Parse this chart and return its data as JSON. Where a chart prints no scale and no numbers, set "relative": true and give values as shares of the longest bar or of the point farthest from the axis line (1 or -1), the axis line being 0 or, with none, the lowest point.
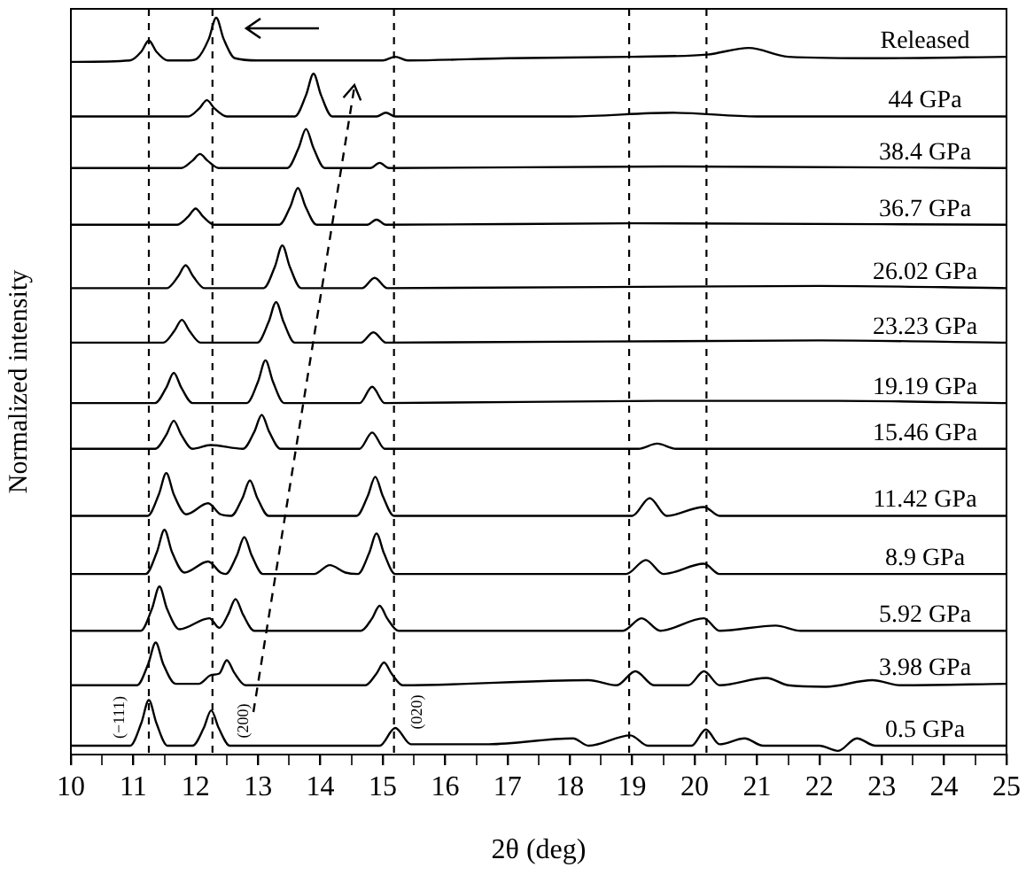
{
  "chart_data": {
    "type": "line",
    "relative": true,
    "xlabel": "2θ (deg)",
    "ylabel": "Normalized intensity",
    "xlim": [
      10,
      25
    ],
    "xticks": [
      10,
      {
        "value": 10.5,
        "label": null
      },
      11,
      {
        "value": 11.5,
        "label": null
      },
      12,
      {
        "value": 12.5,
        "label": null
      },
      13,
      {
        "value": 13.5,
        "label": null
      },
      14,
      {
        "value": 14.5,
        "label": null
      },
      15,
      {
        "value": 15.5,
        "label": null
      },
      16,
      {
        "value": 16.5,
        "label": null
      },
      17,
      {
        "value": 17.5,
        "label": null
      },
      18,
      {
        "value": 18.5,
        "label": null
      },
      19,
      {
        "value": 19.5,
        "label": null
      },
      20,
      {
        "value": 20.5,
        "label": null
      },
      21,
      {
        "value": 21.5,
        "label": null
      },
      22,
      {
        "value": 22.5,
        "label": null
      },
      23,
      {
        "value": 23.5,
        "label": null
      },
      24,
      {
        "value": 24.5,
        "label": null
      },
      25
    ],
    "grid": false,
    "legend": false,
    "marker": "none",
    "line_style": "solid",
    "ref_lines": [
      {
        "axis": "x",
        "value": 11.25,
        "line_style": "dashed"
      },
      {
        "axis": "x",
        "value": 12.27,
        "line_style": "dashed"
      },
      {
        "axis": "x",
        "value": 15.18,
        "line_style": "dashed"
      },
      {
        "axis": "x",
        "value": 18.95,
        "line_style": "dashed"
      },
      {
        "axis": "x",
        "value": 20.19,
        "line_style": "dashed"
      }
    ],
    "annotations": [
      "(−111)",
      "(200)",
      "(020)"
    ],
    "series": [
      {
        "name": "Released",
        "color": "#000000",
        "x": [
          10,
          10.95,
          11.13,
          11.25,
          11.37,
          11.55,
          11.9,
          12.03,
          12.21,
          12.33,
          12.45,
          12.63,
          13,
          15,
          15.2,
          15.4,
          17,
          19,
          20.2,
          20.87,
          21.5,
          23,
          25
        ],
        "values": [
          0.94,
          0.942,
          0.954,
          0.969,
          0.954,
          0.942,
          0.942,
          0.945,
          0.971,
          1,
          0.971,
          0.945,
          0.942,
          0.942,
          0.947,
          0.942,
          0.945,
          0.947,
          0.95,
          0.959,
          0.947,
          0.945,
          0.947
        ]
      },
      {
        "name": "44 GPa",
        "color": "#000000",
        "x": [
          10,
          11.88,
          12.06,
          12.18,
          12.3,
          12.5,
          13.59,
          13.77,
          13.89,
          14.01,
          14.19,
          14.9,
          15.05,
          15.2,
          18,
          19.65,
          21,
          25
        ],
        "values": [
          0.866,
          0.866,
          0.877,
          0.888,
          0.877,
          0.866,
          0.866,
          0.895,
          0.924,
          0.895,
          0.866,
          0.866,
          0.871,
          0.866,
          0.866,
          0.871,
          0.866,
          0.866
        ]
      },
      {
        "name": "38.4 GPa",
        "color": "#000000",
        "x": [
          10,
          11.77,
          11.95,
          12.07,
          12.19,
          12.37,
          13.47,
          13.65,
          13.77,
          13.89,
          14.07,
          14.8,
          14.95,
          15.1,
          19.5,
          25
        ],
        "values": [
          0.796,
          0.796,
          0.806,
          0.815,
          0.806,
          0.796,
          0.796,
          0.823,
          0.849,
          0.823,
          0.796,
          0.796,
          0.803,
          0.796,
          0.798,
          0.796
        ]
      },
      {
        "name": "36.7 GPa",
        "color": "#000000",
        "x": [
          10,
          11.7,
          11.88,
          12,
          12.12,
          12.3,
          13.34,
          13.52,
          13.64,
          13.76,
          13.94,
          14.75,
          14.9,
          15.05,
          19,
          25
        ],
        "values": [
          0.719,
          0.719,
          0.73,
          0.741,
          0.73,
          0.719,
          0.719,
          0.744,
          0.769,
          0.744,
          0.719,
          0.719,
          0.726,
          0.719,
          0.721,
          0.719
        ]
      },
      {
        "name": "26.02 GPa",
        "color": "#000000",
        "x": [
          10,
          11.54,
          11.72,
          11.84,
          11.96,
          12.14,
          13.09,
          13.27,
          13.39,
          13.51,
          13.69,
          14.67,
          14.87,
          15.07,
          22,
          25
        ],
        "values": [
          0.633,
          0.633,
          0.649,
          0.664,
          0.649,
          0.633,
          0.633,
          0.662,
          0.691,
          0.662,
          0.633,
          0.633,
          0.647,
          0.633,
          0.636,
          0.633
        ]
      },
      {
        "name": "23.23 GPa",
        "color": "#000000",
        "x": [
          10,
          11.48,
          11.66,
          11.78,
          11.9,
          12.08,
          12.99,
          13.17,
          13.29,
          13.41,
          13.59,
          14.65,
          14.85,
          15.05,
          22,
          25
        ],
        "values": [
          0.559,
          0.559,
          0.575,
          0.59,
          0.575,
          0.559,
          0.559,
          0.587,
          0.614,
          0.587,
          0.559,
          0.559,
          0.573,
          0.559,
          0.562,
          0.559
        ]
      },
      {
        "name": "19.19 GPa",
        "color": "#000000",
        "x": [
          10,
          11.35,
          11.53,
          11.65,
          11.77,
          11.95,
          12.82,
          13,
          13.12,
          13.24,
          13.42,
          14.63,
          14.83,
          15.03,
          19.4,
          22.3,
          25
        ],
        "values": [
          0.477,
          0.477,
          0.498,
          0.518,
          0.498,
          0.477,
          0.477,
          0.506,
          0.535,
          0.506,
          0.477,
          0.477,
          0.499,
          0.477,
          0.48,
          0.48,
          0.477
        ]
      },
      {
        "name": "15.46 GPa",
        "color": "#000000",
        "x": [
          10,
          11.35,
          11.53,
          11.65,
          11.77,
          11.95,
          12.24,
          12.76,
          12.94,
          13.06,
          13.18,
          13.36,
          14.63,
          14.83,
          15.03,
          19.1,
          19.4,
          19.7,
          25
        ],
        "values": [
          0.415,
          0.415,
          0.434,
          0.453,
          0.434,
          0.415,
          0.42,
          0.415,
          0.438,
          0.461,
          0.438,
          0.415,
          0.415,
          0.437,
          0.415,
          0.415,
          0.422,
          0.415,
          0.415
        ]
      },
      {
        "name": "11.42 GPa",
        "color": "#000000",
        "x": [
          10,
          11.23,
          11.41,
          11.53,
          11.65,
          11.85,
          12.2,
          12.4,
          12.57,
          12.75,
          12.87,
          12.99,
          13.17,
          14.58,
          14.76,
          14.88,
          15,
          15.18,
          19,
          19.28,
          19.55,
          20.15,
          20.4,
          25
        ],
        "values": [
          0.324,
          0.324,
          0.353,
          0.382,
          0.353,
          0.326,
          0.341,
          0.326,
          0.324,
          0.348,
          0.372,
          0.348,
          0.324,
          0.324,
          0.351,
          0.377,
          0.351,
          0.324,
          0.324,
          0.348,
          0.324,
          0.336,
          0.324,
          0.324
        ]
      },
      {
        "name": "8.9 GPa",
        "color": "#000000",
        "x": [
          10,
          11.2,
          11.38,
          11.5,
          11.62,
          11.82,
          12.2,
          12.4,
          12.48,
          12.66,
          12.78,
          12.9,
          13.08,
          13.9,
          14.15,
          14.4,
          14.6,
          14.78,
          14.9,
          15.02,
          15.2,
          18.9,
          19.22,
          19.5,
          20.15,
          20.4,
          25
        ],
        "values": [
          0.245,
          0.245,
          0.275,
          0.305,
          0.275,
          0.247,
          0.262,
          0.247,
          0.245,
          0.27,
          0.295,
          0.27,
          0.245,
          0.245,
          0.257,
          0.247,
          0.245,
          0.273,
          0.3,
          0.273,
          0.245,
          0.245,
          0.264,
          0.245,
          0.259,
          0.245,
          0.245
        ]
      },
      {
        "name": "5.92 GPa",
        "color": "#000000",
        "x": [
          10,
          11.12,
          11.3,
          11.42,
          11.54,
          11.74,
          12.22,
          12.38,
          12.52,
          12.64,
          12.76,
          12.94,
          14.65,
          14.83,
          14.95,
          15.07,
          15.25,
          18.85,
          19.15,
          19.45,
          20.15,
          20.4,
          21.3,
          21.7,
          25
        ],
        "values": [
          0.168,
          0.168,
          0.198,
          0.228,
          0.198,
          0.17,
          0.185,
          0.172,
          0.19,
          0.211,
          0.19,
          0.168,
          0.168,
          0.185,
          0.202,
          0.185,
          0.168,
          0.168,
          0.185,
          0.168,
          0.185,
          0.168,
          0.175,
          0.168,
          0.168
        ]
      },
      {
        "name": "3.98 GPa",
        "color": "#000000",
        "x": [
          10,
          11.06,
          11.24,
          11.36,
          11.48,
          11.68,
          12.05,
          12.25,
          12.38,
          12.5,
          12.62,
          12.8,
          14.72,
          14.9,
          15.02,
          15.14,
          15.32,
          18.3,
          18.75,
          19.05,
          19.35,
          19.9,
          20.15,
          20.4,
          21.15,
          21.5,
          22.1,
          22.85,
          23.3,
          25
        ],
        "values": [
          0.094,
          0.094,
          0.123,
          0.152,
          0.123,
          0.096,
          0.096,
          0.108,
          0.11,
          0.128,
          0.111,
          0.094,
          0.094,
          0.11,
          0.125,
          0.11,
          0.094,
          0.101,
          0.094,
          0.113,
          0.094,
          0.094,
          0.113,
          0.094,
          0.104,
          0.094,
          0.092,
          0.101,
          0.094,
          0.096
        ]
      },
      {
        "name": "0.5 GPa",
        "color": "#000000",
        "x": [
          10,
          10.95,
          11.13,
          11.25,
          11.37,
          11.55,
          11.95,
          12.13,
          12.25,
          12.37,
          12.55,
          14.95,
          15.2,
          15.45,
          16.7,
          18.05,
          18.3,
          18.97,
          19.25,
          19.95,
          20.18,
          20.4,
          20.8,
          21.1,
          22,
          22.3,
          22.6,
          22.9,
          25
        ],
        "values": [
          0.012,
          0.012,
          0.043,
          0.074,
          0.043,
          0.012,
          0.012,
          0.036,
          0.06,
          0.036,
          0.012,
          0.012,
          0.036,
          0.014,
          0.014,
          0.022,
          0.012,
          0.026,
          0.012,
          0.012,
          0.034,
          0.014,
          0.022,
          0.012,
          0.012,
          0.005,
          0.022,
          0.012,
          0.012
        ]
      }
    ]
  }
}
